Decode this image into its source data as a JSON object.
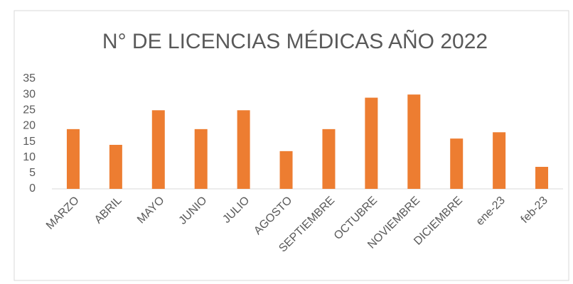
{
  "chart_data": {
    "type": "bar",
    "title": "N° DE LICENCIAS MÉDICAS AÑO 2022",
    "categories": [
      "MARZO",
      "ABRIL",
      "MAYO",
      "JUNIO",
      "JULIO",
      "AGOSTO",
      "SEPTIEMBRE",
      "OCTUBRE",
      "NOVIEMBRE",
      "DICIEMBRE",
      "ene-23",
      "feb-23"
    ],
    "values": [
      19,
      14,
      25,
      19,
      25,
      12,
      19,
      29,
      30,
      16,
      18,
      7
    ],
    "color": "#ed7d31",
    "ylim": [
      0,
      35
    ],
    "yticks": [
      0,
      5,
      10,
      15,
      20,
      25,
      30,
      35
    ],
    "grid": false
  }
}
